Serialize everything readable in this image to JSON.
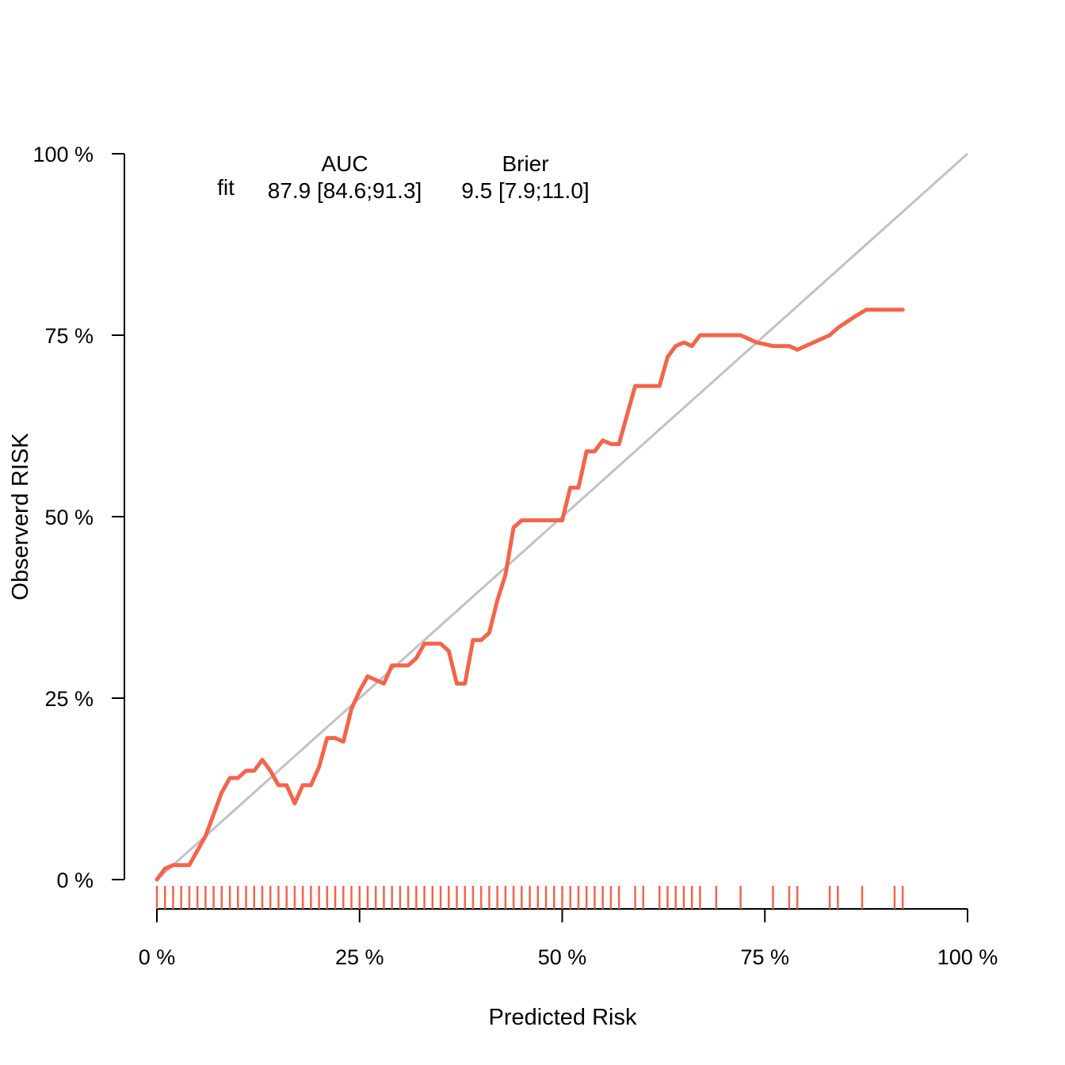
{
  "chart_data": {
    "type": "line",
    "xlabel": "Predicted Risk",
    "ylabel": "Observerd RISK",
    "xlim": [
      0,
      100
    ],
    "ylim": [
      0,
      100
    ],
    "x_ticks": [
      0,
      25,
      50,
      75,
      100
    ],
    "x_tick_labels": [
      "0 %",
      "25 %",
      "50 %",
      "75 %",
      "100 %"
    ],
    "y_ticks": [
      0,
      25,
      50,
      75,
      100
    ],
    "y_tick_labels": [
      "0 %",
      "25 %",
      "50 %",
      "75 %",
      "100 %"
    ],
    "grid": false,
    "colors": {
      "series": "#F4644A",
      "reference": "#C2C2C2"
    },
    "legend": {
      "row_label": "fit",
      "auc_header": "AUC",
      "auc_value": "87.9 [84.6;91.3]",
      "brier_header": "Brier",
      "brier_value": "9.5 [7.9;11.0]"
    },
    "reference_line": {
      "x": [
        0,
        100
      ],
      "y": [
        0,
        100
      ]
    },
    "series": [
      {
        "name": "fit",
        "x": [
          0.0,
          1.0,
          2.0,
          4.0,
          6.0,
          7.0,
          8.0,
          9.0,
          10.0,
          11.0,
          12.0,
          13.0,
          14.0,
          15.0,
          16.0,
          17.0,
          18.0,
          19.0,
          20.0,
          21.0,
          22.0,
          23.0,
          24.0,
          25.0,
          26.0,
          27.0,
          28.0,
          29.0,
          30.0,
          31.0,
          32.0,
          33.0,
          34.0,
          35.0,
          36.0,
          37.0,
          38.0,
          39.0,
          40.0,
          41.0,
          42.0,
          43.0,
          44.0,
          45.0,
          46.0,
          48.0,
          50.0,
          51.0,
          52.0,
          53.0,
          54.0,
          55.0,
          56.0,
          57.0,
          58.0,
          59.0,
          61.0,
          62.0,
          63.0,
          64.0,
          65.0,
          66.0,
          67.0,
          70.0,
          72.0,
          74.0,
          76.0,
          78.0,
          79.0,
          81.0,
          83.0,
          84.0,
          86.0,
          87.5,
          90.0,
          92.0
        ],
        "y": [
          0.0,
          1.5,
          2.0,
          2.0,
          6.0,
          9.0,
          12.0,
          14.0,
          14.0,
          15.0,
          15.0,
          16.5,
          15.0,
          13.0,
          13.0,
          10.5,
          13.0,
          13.0,
          15.5,
          19.5,
          19.5,
          19.0,
          23.5,
          26.0,
          28.0,
          27.5,
          27.0,
          29.5,
          29.5,
          29.5,
          30.5,
          32.5,
          32.5,
          32.5,
          31.5,
          27.0,
          27.0,
          33.0,
          33.0,
          34.0,
          38.5,
          42.0,
          48.5,
          49.5,
          49.5,
          49.5,
          49.5,
          54.0,
          54.0,
          59.0,
          59.0,
          60.5,
          60.0,
          60.0,
          64.0,
          68.0,
          68.0,
          68.0,
          72.0,
          73.5,
          74.0,
          73.5,
          75.0,
          75.0,
          75.0,
          74.0,
          73.5,
          73.5,
          73.0,
          74.0,
          75.0,
          76.0,
          77.5,
          78.5,
          78.5,
          78.5
        ]
      }
    ],
    "rug_x": [
      0,
      1,
      2,
      3,
      4,
      5,
      6,
      7,
      8,
      9,
      10,
      11,
      12,
      13,
      14,
      15,
      16,
      17,
      18,
      19,
      20,
      21,
      22,
      23,
      24,
      25,
      26,
      27,
      28,
      29,
      30,
      31,
      32,
      33,
      34,
      35,
      36,
      37,
      38,
      39,
      40,
      41,
      42,
      43,
      44,
      45,
      46,
      47,
      48,
      49,
      50,
      51,
      52,
      53,
      54,
      55,
      56,
      57,
      59,
      60,
      62,
      63,
      64,
      65,
      66,
      67,
      69,
      72,
      76,
      78,
      79,
      83,
      84,
      87,
      91,
      92
    ]
  }
}
